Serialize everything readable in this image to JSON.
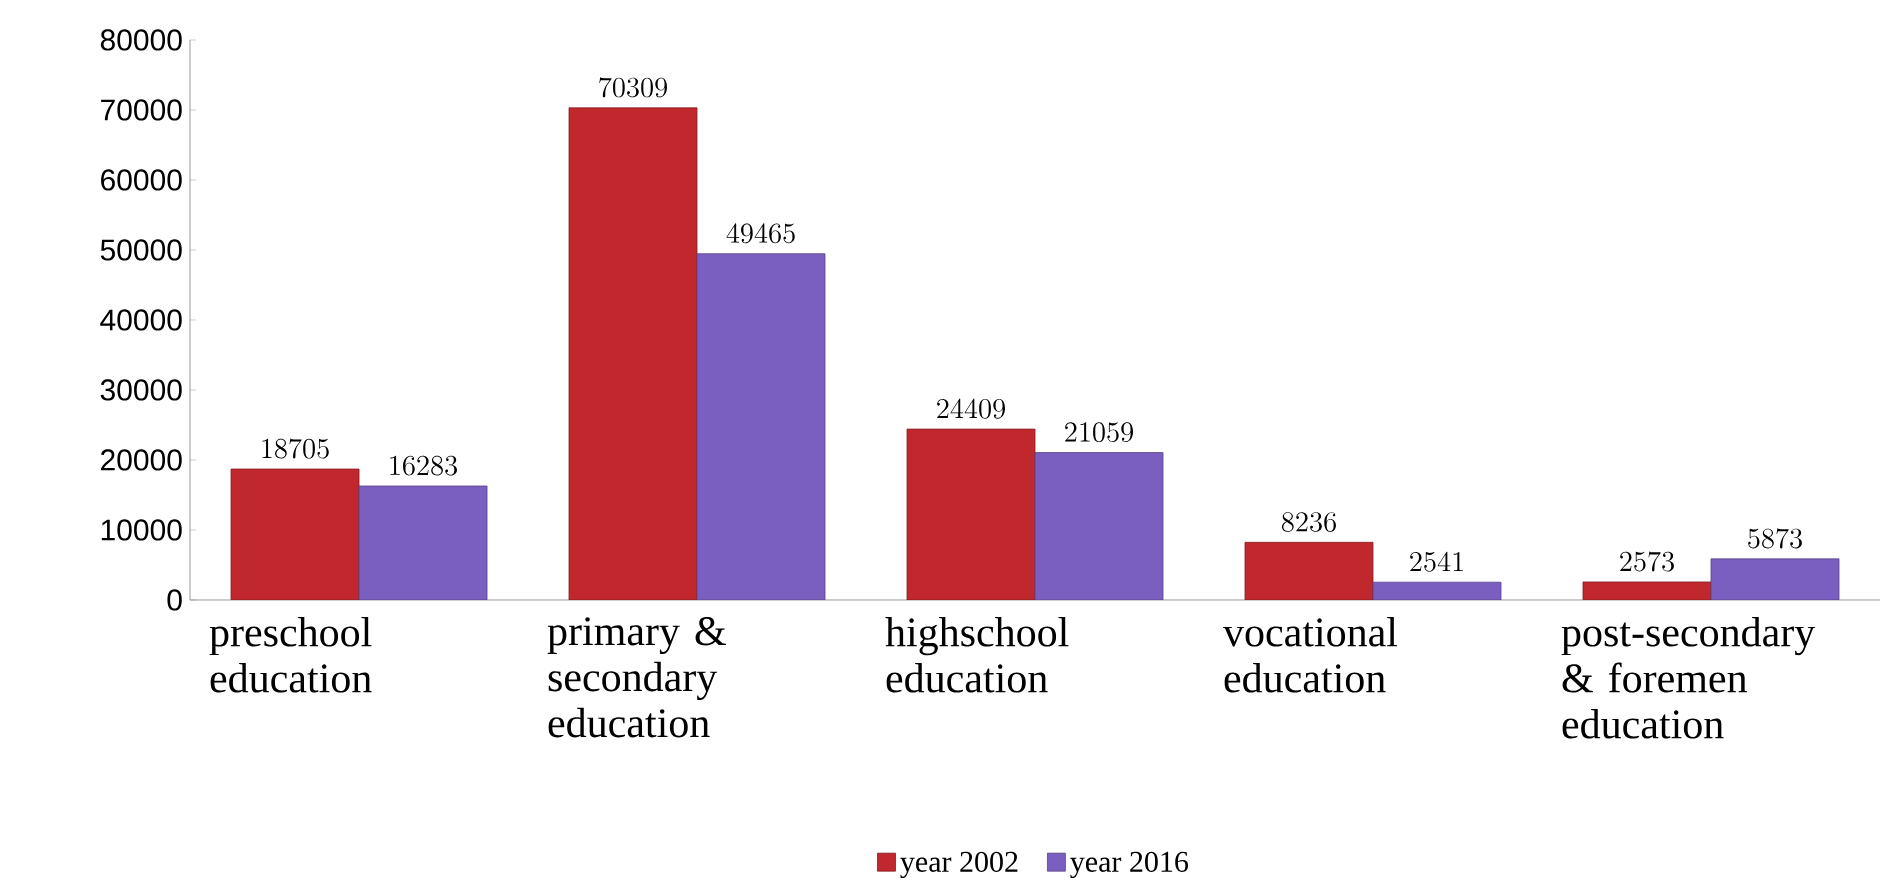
{
  "chart_data": {
    "type": "bar",
    "categories": [
      "preschool education",
      "primary & secondary education",
      "highschool education",
      "vocational education",
      "post-secondary & foremen education"
    ],
    "series": [
      {
        "name": "year 2002",
        "color": "#c0282d",
        "values": [
          18705,
          70309,
          24409,
          8236,
          2573
        ]
      },
      {
        "name": "year 2016",
        "color": "#7a5fc0",
        "values": [
          16283,
          49465,
          21059,
          2541,
          5873
        ]
      }
    ],
    "ylim": [
      0,
      80000
    ],
    "yticks": [
      0,
      10000,
      20000,
      30000,
      40000,
      50000,
      60000,
      70000,
      80000
    ],
    "data_labels": true,
    "legend": "bottom"
  }
}
